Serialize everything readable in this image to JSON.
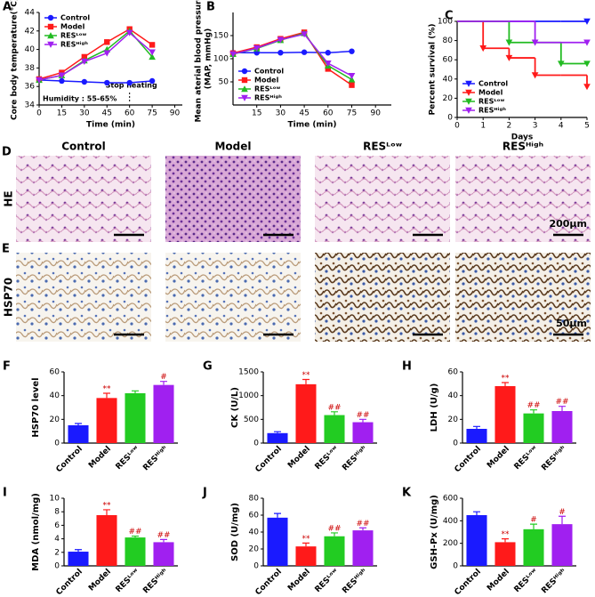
{
  "chart_data": [
    {
      "type": "line",
      "panel": "A",
      "xlabel": "Time (min)",
      "ylabel": [
        "Core body temperature(°C)"
      ],
      "x": [
        0,
        15,
        30,
        45,
        60,
        75
      ],
      "xlim": [
        0,
        95
      ],
      "xticks": [
        0,
        15,
        30,
        45,
        60,
        75,
        90
      ],
      "ylim": [
        34,
        44
      ],
      "yticks": [
        34,
        36,
        38,
        40,
        42,
        44
      ],
      "legend": "upper left",
      "vline": 60,
      "annotations": [
        "Humidity : 55-65%",
        "Stop heating"
      ],
      "series": [
        {
          "name": "Control",
          "color": "#1a1aff",
          "marker": "circle",
          "values": [
            36.7,
            36.6,
            36.5,
            36.4,
            36.4,
            36.6
          ]
        },
        {
          "name": "Model",
          "color": "#ff1a1a",
          "marker": "square",
          "values": [
            36.8,
            37.5,
            39.2,
            40.8,
            42.2,
            40.5
          ]
        },
        {
          "name": "RESᴸᵒʷ",
          "color": "#22bb22",
          "marker": "triangle-up",
          "values": [
            36.7,
            37.2,
            38.8,
            40.0,
            42.0,
            39.2
          ]
        },
        {
          "name": "RESᴴⁱᵍʰ",
          "color": "#a020f0",
          "marker": "triangle-down",
          "values": [
            36.7,
            37.2,
            38.7,
            39.6,
            41.8,
            39.7
          ]
        }
      ]
    },
    {
      "type": "line",
      "panel": "B",
      "xlabel": "Time (min)",
      "ylabel": [
        "Mean aterial blood pressure",
        "(MAP, mmHg)"
      ],
      "x": [
        0,
        15,
        30,
        45,
        60,
        75
      ],
      "xlim": [
        0,
        100
      ],
      "xticks": [
        15,
        30,
        45,
        60,
        75,
        90
      ],
      "ylim": [
        0,
        200
      ],
      "yticks": [
        50,
        100,
        150
      ],
      "legend": "lower left",
      "series": [
        {
          "name": "Control",
          "color": "#1a1aff",
          "marker": "circle",
          "values": [
            113,
            113,
            113,
            114,
            113,
            116
          ]
        },
        {
          "name": "Model",
          "color": "#ff1a1a",
          "marker": "square",
          "values": [
            112,
            125,
            143,
            157,
            78,
            43
          ]
        },
        {
          "name": "RESᴸᵒʷ",
          "color": "#22bb22",
          "marker": "triangle-up",
          "values": [
            110,
            122,
            140,
            155,
            85,
            55
          ]
        },
        {
          "name": "RESᴴⁱᵍʰ",
          "color": "#a020f0",
          "marker": "triangle-down",
          "values": [
            110,
            123,
            141,
            153,
            90,
            63
          ]
        }
      ]
    },
    {
      "type": "step",
      "panel": "C",
      "xlabel": "Days",
      "ylabel": [
        "Percent survival  (%)"
      ],
      "x": [
        0,
        1,
        2,
        3,
        4,
        5
      ],
      "xlim": [
        0,
        5
      ],
      "xticks": [
        0,
        1,
        2,
        3,
        4,
        5
      ],
      "ylim": [
        0,
        100
      ],
      "yticks": [
        0,
        20,
        40,
        60,
        80,
        100
      ],
      "legend": "lower left",
      "series": [
        {
          "name": "Control",
          "color": "#1a1aff",
          "marker": "triangle-down",
          "values": [
            100,
            100,
            100,
            100,
            100,
            100
          ]
        },
        {
          "name": "Model",
          "color": "#ff1a1a",
          "marker": "triangle-down",
          "values": [
            100,
            72,
            62,
            44,
            44,
            32
          ]
        },
        {
          "name": "RESᴸᵒʷ",
          "color": "#22bb22",
          "marker": "triangle-down",
          "values": [
            100,
            100,
            78,
            78,
            56,
            56
          ]
        },
        {
          "name": "RESᴴⁱᵍʰ",
          "color": "#a020f0",
          "marker": "triangle-down",
          "values": [
            100,
            100,
            100,
            78,
            78,
            78
          ]
        }
      ]
    },
    {
      "type": "bar",
      "panel": "F",
      "ylabel": "HSP70 level",
      "categories": [
        "Control",
        "Model",
        "RESᴸᵒʷ",
        "RESᴴⁱᵍʰ"
      ],
      "colors": [
        "#1a1aff",
        "#ff1a1a",
        "#22cc22",
        "#a020f0"
      ],
      "values": [
        15,
        38,
        42,
        49
      ],
      "errors": [
        1.5,
        4,
        2,
        3
      ],
      "sig": [
        null,
        "**",
        null,
        "#"
      ],
      "ylim": [
        0,
        60
      ],
      "yticks": [
        0,
        20,
        40,
        60
      ]
    },
    {
      "type": "bar",
      "panel": "G",
      "ylabel": "CK (U/L)",
      "categories": [
        "Control",
        "Model",
        "RESᴸᵒʷ",
        "RESᴴⁱᵍʰ"
      ],
      "colors": [
        "#1a1aff",
        "#ff1a1a",
        "#22cc22",
        "#a020f0"
      ],
      "values": [
        210,
        1240,
        590,
        440
      ],
      "errors": [
        30,
        100,
        70,
        60
      ],
      "sig": [
        null,
        "**",
        "##",
        "##"
      ],
      "ylim": [
        0,
        1500
      ],
      "yticks": [
        0,
        500,
        1000,
        1500
      ]
    },
    {
      "type": "bar",
      "panel": "H",
      "ylabel": "LDH (U/g)",
      "categories": [
        "Control",
        "Model",
        "RESᴸᵒʷ",
        "RESᴴⁱᵍʰ"
      ],
      "colors": [
        "#1a1aff",
        "#ff1a1a",
        "#22cc22",
        "#a020f0"
      ],
      "values": [
        12,
        48,
        25,
        27
      ],
      "errors": [
        2,
        3,
        3,
        4
      ],
      "sig": [
        null,
        "**",
        "##",
        "##"
      ],
      "ylim": [
        0,
        60
      ],
      "yticks": [
        0,
        20,
        40,
        60
      ]
    },
    {
      "type": "bar",
      "panel": "I",
      "ylabel": "MDA (nmol/mg)",
      "categories": [
        "Control",
        "Model",
        "RESᴸᵒʷ",
        "RESᴴⁱᵍʰ"
      ],
      "colors": [
        "#1a1aff",
        "#ff1a1a",
        "#22cc22",
        "#a020f0"
      ],
      "values": [
        2.1,
        7.5,
        4.2,
        3.5
      ],
      "errors": [
        0.3,
        0.8,
        0.2,
        0.4
      ],
      "sig": [
        null,
        "**",
        "##",
        "##"
      ],
      "ylim": [
        0,
        10
      ],
      "yticks": [
        0,
        2,
        4,
        6,
        8,
        10
      ]
    },
    {
      "type": "bar",
      "panel": "J",
      "ylabel": "SOD (U/mg)",
      "categories": [
        "Control",
        "Model",
        "RESᴸᵒʷ",
        "RESᴴⁱᵍʰ"
      ],
      "colors": [
        "#1a1aff",
        "#ff1a1a",
        "#22cc22",
        "#a020f0"
      ],
      "values": [
        57,
        23,
        35,
        42
      ],
      "errors": [
        5,
        4,
        4,
        3
      ],
      "sig": [
        null,
        "**",
        "##",
        "##"
      ],
      "ylim": [
        0,
        80
      ],
      "yticks": [
        0,
        20,
        40,
        60,
        80
      ]
    },
    {
      "type": "bar",
      "panel": "K",
      "ylabel": "GSH-Px (U/mg)",
      "categories": [
        "Control",
        "Model",
        "RESᴸᵒʷ",
        "RESᴴⁱᵍʰ"
      ],
      "colors": [
        "#1a1aff",
        "#ff1a1a",
        "#22cc22",
        "#a020f0"
      ],
      "values": [
        450,
        210,
        325,
        370
      ],
      "errors": [
        30,
        30,
        45,
        70
      ],
      "sig": [
        null,
        "**",
        "#",
        "#"
      ],
      "ylim": [
        0,
        600
      ],
      "yticks": [
        0,
        200,
        400,
        600
      ]
    }
  ],
  "images": {
    "columns": [
      "Control",
      "Model",
      "RESᴸᵒʷ",
      "RESᴴⁱᵍʰ"
    ],
    "rows": [
      {
        "panel": "D",
        "label": "HE",
        "scale": "200μm"
      },
      {
        "panel": "E",
        "label": "HSP70",
        "scale": "50μm"
      }
    ]
  }
}
